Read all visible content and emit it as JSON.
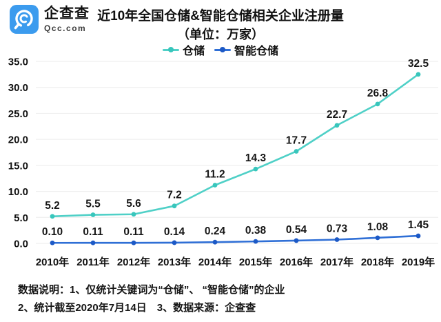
{
  "brand": {
    "name": "企查查",
    "domain": "Qcc.com",
    "logo_color": "#3b9bee"
  },
  "header": {
    "title": "近10年全国仓储&智能仓储相关企业注册量",
    "subtitle": "（单位：万家）"
  },
  "chart_data": {
    "type": "line",
    "title": "近10年全国仓储&智能仓储相关企业注册量（单位：万家）",
    "xlabel": "",
    "ylabel": "",
    "categories": [
      "2010年",
      "2011年",
      "2012年",
      "2013年",
      "2014年",
      "2015年",
      "2016年",
      "2017年",
      "2018年",
      "2019年"
    ],
    "series": [
      {
        "name": "仓储",
        "values": [
          5.2,
          5.5,
          5.6,
          7.2,
          11.2,
          14.3,
          17.7,
          22.7,
          26.8,
          32.5
        ],
        "labels": [
          "5.2",
          "5.5",
          "5.6",
          "7.2",
          "11.2",
          "14.3",
          "17.7",
          "22.7",
          "26.8",
          "32.5"
        ],
        "color": "#4fd0c7",
        "marker_color": "#38c6bc"
      },
      {
        "name": "智能仓储",
        "values": [
          0.1,
          0.11,
          0.11,
          0.14,
          0.24,
          0.38,
          0.54,
          0.73,
          1.08,
          1.45
        ],
        "labels": [
          "0.10",
          "0.11",
          "0.11",
          "0.14",
          "0.24",
          "0.38",
          "0.54",
          "0.73",
          "1.08",
          "1.45"
        ],
        "color": "#2f6fd6",
        "marker_color": "#1c59c6"
      }
    ],
    "ylim": [
      0,
      35
    ],
    "ytick_step": 5,
    "ytick_labels": [
      "0.0",
      "5.0",
      "10.0",
      "15.0",
      "20.0",
      "25.0",
      "30.0",
      "35.0"
    ],
    "grid": "on",
    "grid_color": "#efefef",
    "legend_position": "top"
  },
  "footer": {
    "note1": "数据说明：1、仅统计关键词为“仓储”、 “智能仓储”的企业",
    "note2": "2、统计截至2020年7月14日　3、数据来源：企查查"
  }
}
